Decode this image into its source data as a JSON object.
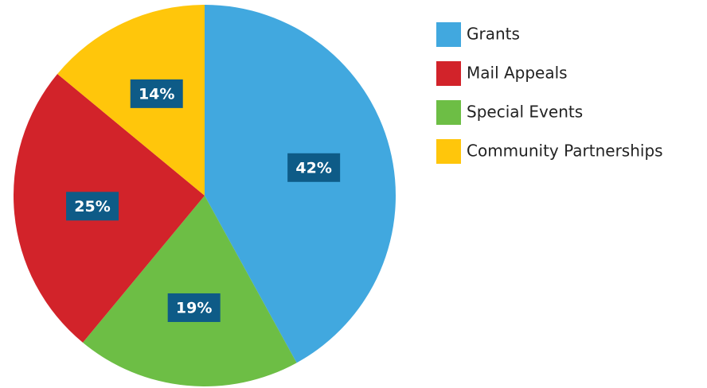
{
  "chart_data": {
    "type": "pie",
    "categories": [
      "Grants",
      "Mail Appeals",
      "Special Events",
      "Community Partnerships"
    ],
    "values": [
      42,
      25,
      19,
      14
    ],
    "value_labels": [
      "42%",
      "25%",
      "19%",
      "14%"
    ],
    "colors": [
      "#41a8df",
      "#d2232a",
      "#6dbe45",
      "#ffc60b"
    ],
    "slice_order": [
      0,
      2,
      1,
      3
    ],
    "legend": "right"
  }
}
